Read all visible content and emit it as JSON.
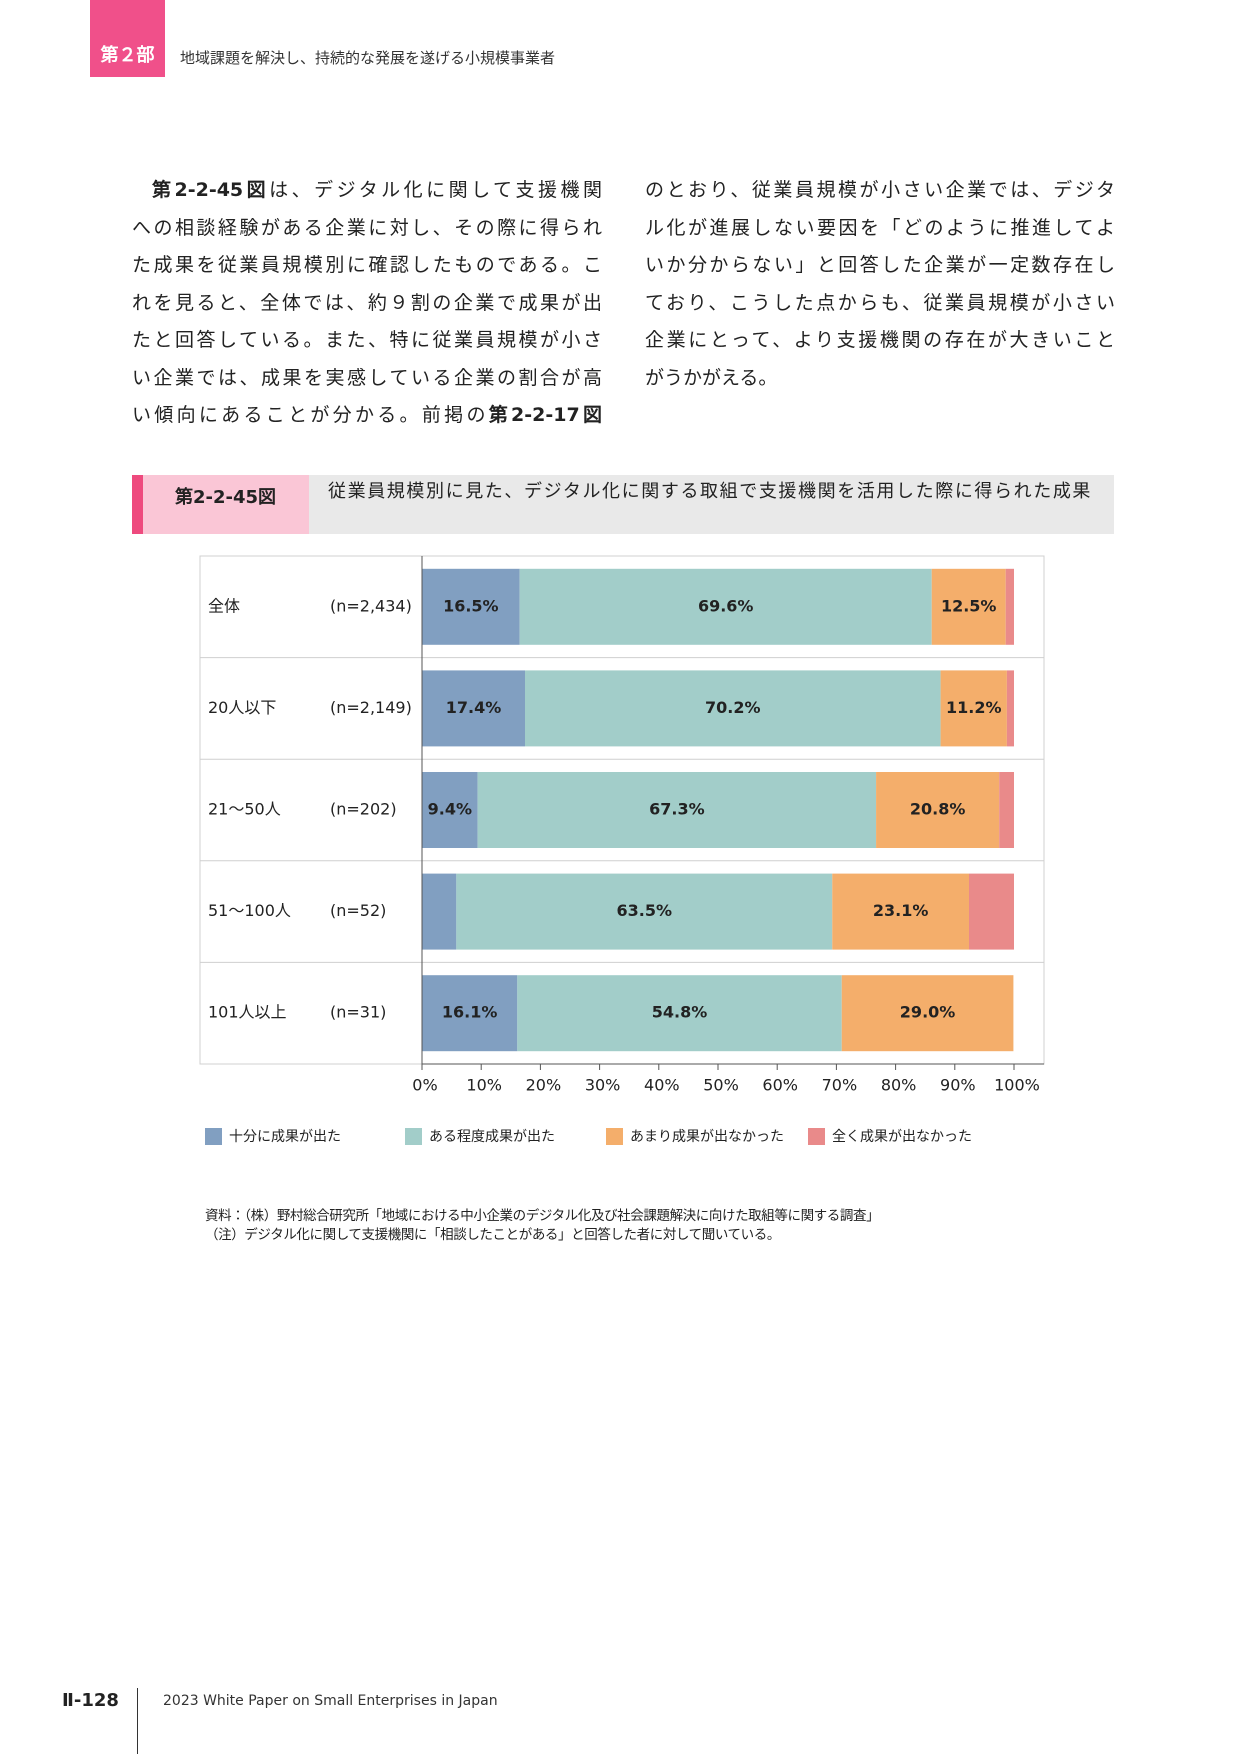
{
  "header": {
    "part": "第２部",
    "title": "地域課題を解決し、持続的な発展を遂げる小規模事業者"
  },
  "body": {
    "left_lines": [
      [
        {
          "text": "第2-2-45図",
          "bold": true
        },
        "は、デジタル化に関して支援機関"
      ],
      [
        "への相談経験がある企業に対し、その際に得られ"
      ],
      [
        "た成果を従業員規模別に確認したものである。こ"
      ],
      [
        "れを見ると、全体では、約９割の企業で成果が出"
      ],
      [
        "たと回答している。また、特に従業員規模が小さ"
      ],
      [
        "い企業では、成果を実感している企業の割合が高"
      ],
      [
        "い傾向にあることが分かる。前掲の",
        {
          "text": "第2-2-17図",
          "bold": true
        }
      ]
    ],
    "right_lines": [
      [
        "のとおり、従業員規模が小さい企業では、デジタ"
      ],
      [
        "ル化が進展しない要因を「どのように推進してよ"
      ],
      [
        "いか分からない」と回答した企業が一定数存在し"
      ],
      [
        "ており、こうした点からも、従業員規模が小さい"
      ],
      [
        "企業にとって、より支援機関の存在が大きいこと"
      ],
      [
        "がうかがえる。"
      ]
    ]
  },
  "figure": {
    "number": "第2-2-45図",
    "title": "従業員規模別に見た、デジタル化に関する取組で支援機関を活用した際に得られた成果"
  },
  "chart_data": {
    "type": "bar",
    "orientation": "horizontal",
    "stacked": true,
    "categories": [
      "全体",
      "20人以下",
      "21～50人",
      "51～100人",
      "101人以上"
    ],
    "sample_sizes": [
      "(n=2,434)",
      "(n=2,149)",
      "(n=202)",
      "(n=52)",
      "(n=31)"
    ],
    "series": [
      {
        "name": "十分に成果が出た",
        "color": "#819fc1",
        "values": [
          16.5,
          17.4,
          9.4,
          5.8,
          16.1
        ],
        "value_labels": [
          "16.5%",
          "17.4%",
          "9.4%",
          null,
          "16.1%"
        ]
      },
      {
        "name": "ある程度成果が出た",
        "color": "#a2cdc9",
        "values": [
          69.6,
          70.2,
          67.3,
          63.5,
          54.8
        ],
        "value_labels": [
          "69.6%",
          "70.2%",
          "67.3%",
          "63.5%",
          "54.8%"
        ]
      },
      {
        "name": "あまり成果が出なかった",
        "color": "#f4ae6b",
        "values": [
          12.5,
          11.2,
          20.8,
          23.1,
          29.0
        ],
        "value_labels": [
          "12.5%",
          "11.2%",
          "20.8%",
          "23.1%",
          "29.0%"
        ]
      },
      {
        "name": "全く成果が出なかった",
        "color": "#e98a8a",
        "values": [
          1.4,
          1.2,
          2.5,
          7.6,
          0
        ]
      }
    ],
    "xlim": [
      0,
      100
    ],
    "xticks": [
      {
        "value": 0,
        "label": "0%"
      },
      {
        "value": 10,
        "label": "10%"
      },
      {
        "value": 20,
        "label": "20%"
      },
      {
        "value": 30,
        "label": "30%"
      },
      {
        "value": 40,
        "label": "40%"
      },
      {
        "value": 50,
        "label": "50%"
      },
      {
        "value": 60,
        "label": "60%"
      },
      {
        "value": 70,
        "label": "70%"
      },
      {
        "value": 80,
        "label": "80%"
      },
      {
        "value": 90,
        "label": "90%"
      },
      {
        "value": 100,
        "label": "100%"
      }
    ]
  },
  "notes": [
    "資料：（株）野村総合研究所「地域における中小企業のデジタル化及び社会課題解決に向けた取組等に関する調査」",
    "（注）デジタル化に関して支援機関に「相談したことがある」と回答した者に対して聞いている。"
  ],
  "footer": {
    "page": "Ⅱ-128",
    "title": "2023 White Paper on Small Enterprises in Japan"
  }
}
